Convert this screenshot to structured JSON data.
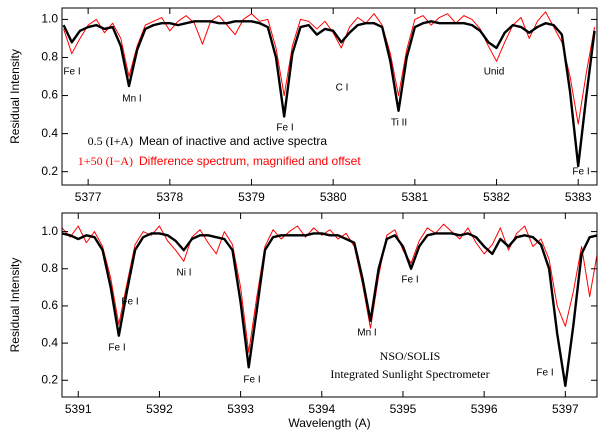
{
  "chart_data": [
    {
      "type": "line",
      "ylabel": "Residual Intensity",
      "xlim": [
        5376.68,
        5383.23
      ],
      "xticks": [
        5377,
        5378,
        5379,
        5380,
        5381,
        5382,
        5383
      ],
      "ylim": [
        0.13,
        1.06
      ],
      "yticks": [
        0.2,
        0.4,
        0.6,
        0.8,
        {
          "value": 1,
          "label": "1.0"
        }
      ],
      "x": [
        5376.7,
        5376.8,
        5376.9,
        5377.0,
        5377.1,
        5377.2,
        5377.3,
        5377.4,
        5377.5,
        5377.6,
        5377.7,
        5377.8,
        5377.9,
        5378.0,
        5378.1,
        5378.2,
        5378.3,
        5378.4,
        5378.5,
        5378.6,
        5378.7,
        5378.8,
        5378.9,
        5379.0,
        5379.1,
        5379.2,
        5379.3,
        5379.4,
        5379.5,
        5379.6,
        5379.7,
        5379.8,
        5379.9,
        5380.0,
        5380.1,
        5380.2,
        5380.3,
        5380.4,
        5380.5,
        5380.6,
        5380.7,
        5380.8,
        5380.9,
        5381.0,
        5381.1,
        5381.2,
        5381.3,
        5381.4,
        5381.5,
        5381.6,
        5381.7,
        5381.8,
        5381.9,
        5382.0,
        5382.1,
        5382.2,
        5382.3,
        5382.4,
        5382.5,
        5382.6,
        5382.7,
        5382.8,
        5382.9,
        5383.0,
        5383.1,
        5383.2
      ],
      "series": [
        {
          "name": "Mean of inactive and active spectra",
          "formula": "0.5 (I+A)",
          "color": "#000000",
          "values": [
            0.97,
            0.88,
            0.94,
            0.96,
            0.97,
            0.95,
            0.96,
            0.86,
            0.65,
            0.84,
            0.95,
            0.97,
            0.98,
            0.98,
            0.97,
            0.98,
            0.99,
            0.99,
            0.99,
            0.98,
            0.98,
            0.99,
            0.99,
            0.99,
            0.98,
            0.96,
            0.8,
            0.49,
            0.82,
            0.96,
            0.97,
            0.92,
            0.95,
            0.94,
            0.88,
            0.93,
            0.97,
            0.98,
            0.98,
            0.96,
            0.78,
            0.52,
            0.8,
            0.96,
            0.98,
            0.99,
            0.98,
            0.98,
            0.98,
            0.98,
            0.97,
            0.94,
            0.88,
            0.85,
            0.93,
            0.97,
            0.96,
            0.93,
            0.96,
            0.98,
            0.97,
            0.92,
            0.62,
            0.23,
            0.6,
            0.94
          ]
        },
        {
          "name": "Difference spectrum, magnified and offset",
          "formula": "1+50 (I−A)",
          "color": "#ff0000",
          "values": [
            0.95,
            0.82,
            0.9,
            0.97,
            1.0,
            0.93,
            0.98,
            0.9,
            0.7,
            0.86,
            0.97,
            0.99,
            1.01,
            0.94,
            0.99,
            1.02,
            0.98,
            0.87,
            0.99,
            1.02,
            0.97,
            0.92,
            1.0,
            1.03,
            0.99,
            1.0,
            0.85,
            0.6,
            0.86,
            1.0,
            0.99,
            0.95,
            0.99,
            0.93,
            0.85,
            0.96,
            1.01,
            0.98,
            1.03,
            0.97,
            0.82,
            0.6,
            0.84,
            1.0,
            1.02,
            0.97,
            1.01,
            1.03,
            0.98,
            1.02,
            1.0,
            0.95,
            0.86,
            0.78,
            0.88,
            0.97,
            1.01,
            0.9,
            0.99,
            1.04,
            0.96,
            0.88,
            0.7,
            0.45,
            0.72,
            0.96
          ]
        }
      ],
      "annotations": [
        "Fe I",
        "Mn I",
        "Fe I",
        "C I",
        "Ti II",
        "Unid",
        "Fe I"
      ]
    },
    {
      "type": "line",
      "ylabel": "Residual Intensity",
      "xlabel": "Wavelength (A)",
      "xlim": [
        5390.8,
        5397.39
      ],
      "xticks": [
        5391,
        5392,
        5393,
        5394,
        5395,
        5396,
        5397
      ],
      "ylim": [
        0.11,
        1.1
      ],
      "yticks": [
        0.2,
        0.4,
        0.6,
        0.8,
        {
          "value": 1,
          "label": "1.0"
        }
      ],
      "x": [
        5390.8,
        5390.9,
        5391.0,
        5391.1,
        5391.2,
        5391.3,
        5391.4,
        5391.5,
        5391.6,
        5391.7,
        5391.8,
        5391.9,
        5392.0,
        5392.1,
        5392.2,
        5392.3,
        5392.4,
        5392.5,
        5392.6,
        5392.7,
        5392.8,
        5392.9,
        5393.0,
        5393.1,
        5393.2,
        5393.3,
        5393.4,
        5393.5,
        5393.6,
        5393.7,
        5393.8,
        5393.9,
        5394.0,
        5394.1,
        5394.2,
        5394.3,
        5394.4,
        5394.5,
        5394.6,
        5394.7,
        5394.8,
        5394.9,
        5395.0,
        5395.1,
        5395.2,
        5395.3,
        5395.4,
        5395.5,
        5395.6,
        5395.7,
        5395.8,
        5395.9,
        5396.0,
        5396.1,
        5396.2,
        5396.3,
        5396.4,
        5396.5,
        5396.6,
        5396.7,
        5396.8,
        5396.9,
        5397.0,
        5397.1,
        5397.2,
        5397.3,
        5397.4
      ],
      "series": [
        {
          "color": "#000000",
          "values": [
            0.99,
            0.98,
            0.96,
            0.98,
            0.97,
            0.9,
            0.7,
            0.44,
            0.68,
            0.9,
            0.97,
            0.99,
            0.99,
            0.98,
            0.95,
            0.9,
            0.96,
            0.98,
            0.98,
            0.97,
            0.96,
            0.9,
            0.62,
            0.27,
            0.58,
            0.9,
            0.97,
            0.98,
            0.98,
            0.98,
            0.98,
            0.99,
            0.99,
            0.98,
            0.98,
            0.96,
            0.94,
            0.75,
            0.52,
            0.8,
            0.96,
            0.98,
            0.92,
            0.8,
            0.92,
            0.98,
            0.99,
            0.99,
            0.99,
            0.98,
            0.99,
            0.97,
            0.92,
            0.88,
            0.96,
            0.92,
            0.97,
            0.98,
            0.97,
            0.93,
            0.8,
            0.45,
            0.17,
            0.5,
            0.88,
            0.97,
            0.98
          ]
        },
        {
          "color": "#ff0000",
          "values": [
            1.02,
            0.97,
            1.03,
            0.94,
            1.0,
            0.92,
            0.75,
            0.5,
            0.72,
            0.93,
            1.0,
            0.98,
            1.03,
            0.95,
            0.9,
            0.84,
            0.97,
            1.01,
            0.94,
            0.88,
            1.0,
            0.93,
            0.7,
            0.35,
            0.65,
            0.92,
            1.01,
            0.96,
            1.0,
            1.03,
            0.97,
            1.02,
            0.98,
            1.01,
            0.96,
            0.99,
            0.92,
            0.72,
            0.48,
            0.76,
            0.98,
            1.01,
            0.9,
            0.83,
            0.95,
            1.02,
            0.99,
            1.04,
            1.0,
            0.96,
            1.02,
            0.94,
            0.88,
            0.93,
            1.02,
            0.9,
            0.99,
            1.03,
            0.92,
            0.96,
            0.85,
            0.6,
            0.49,
            0.68,
            0.92,
            0.65,
            0.9
          ]
        }
      ],
      "annotations": [
        "Fe I",
        "Ni I",
        "Fe I",
        "Fe I",
        "Mn I",
        "Fe I",
        "Fe I",
        "NSO/SOLIS",
        "Integrated Sunlight Spectrometer"
      ]
    }
  ]
}
